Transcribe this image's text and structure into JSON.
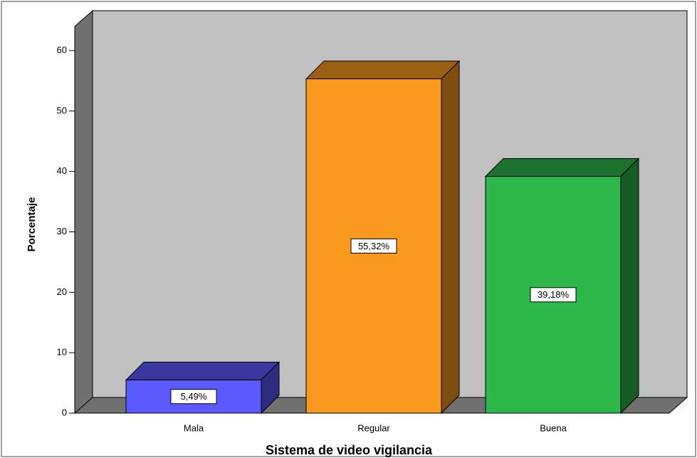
{
  "chart_data": {
    "type": "bar3d",
    "xlabel": "Sistema de video vigilancia",
    "ylabel": "Porcentaje",
    "categories": [
      "Mala",
      "Regular",
      "Buena"
    ],
    "values": [
      5.49,
      55.32,
      39.18
    ],
    "value_labels": [
      "5,49%",
      "55,32%",
      "39,18%"
    ],
    "colors": [
      "#5a5aff",
      "#f99a1e",
      "#2db84a"
    ],
    "ylim": [
      0,
      60
    ],
    "yticks": [
      0,
      10,
      20,
      30,
      40,
      50,
      60
    ]
  }
}
